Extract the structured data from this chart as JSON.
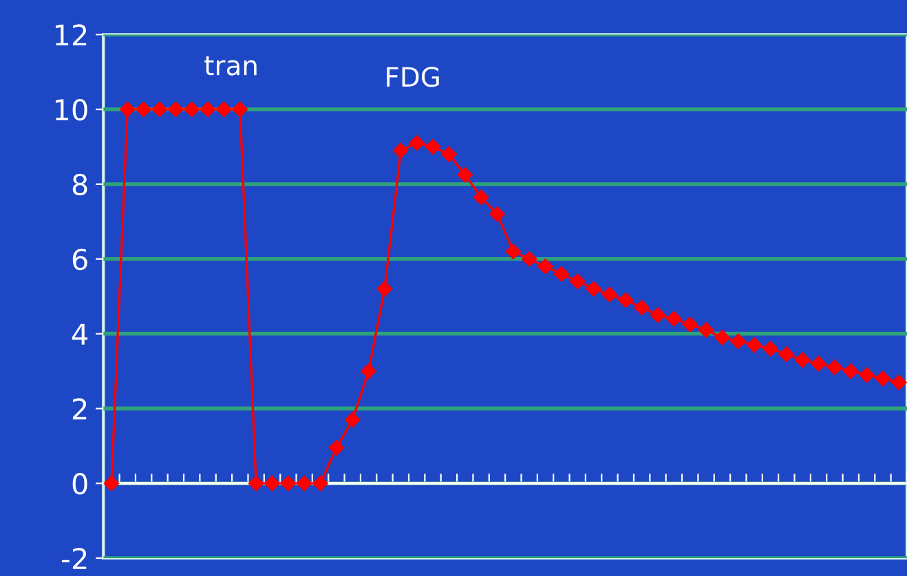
{
  "chart_data": {
    "type": "line",
    "categories": [
      null,
      null,
      null,
      null,
      null,
      null,
      null,
      null,
      null,
      null,
      null,
      null,
      null,
      null,
      null,
      null,
      null,
      null,
      null,
      null,
      null,
      null,
      null,
      null,
      null,
      null,
      null,
      null,
      null,
      null,
      null,
      null,
      null,
      null,
      null,
      null,
      null,
      null,
      null,
      null,
      null,
      null,
      null,
      null,
      null,
      null,
      null,
      null,
      null,
      null
    ],
    "series": [
      {
        "color": "#ff0000",
        "values": [
          0,
          10,
          10,
          10,
          10,
          10,
          10,
          10,
          10,
          0,
          0,
          0,
          0,
          0,
          0.95,
          1.7,
          3.0,
          5.2,
          8.9,
          9.1,
          9.0,
          8.8,
          8.25,
          7.65,
          7.2,
          6.2,
          6.0,
          5.8,
          5.6,
          5.4,
          5.2,
          5.05,
          4.9,
          4.7,
          4.5,
          4.4,
          4.25,
          4.1,
          3.9,
          3.8,
          3.7,
          3.6,
          3.45,
          3.3,
          3.2,
          3.1,
          3.0,
          2.9,
          2.8,
          2.7
        ]
      }
    ],
    "ylim": [
      -2,
      12
    ],
    "yticks": [
      -2,
      0,
      2,
      4,
      6,
      8,
      10,
      12
    ],
    "grid": "y",
    "marker": "diamond",
    "line_style": "solid",
    "tick_labels": "y",
    "annotations": [
      "tran",
      "FDG"
    ]
  }
}
